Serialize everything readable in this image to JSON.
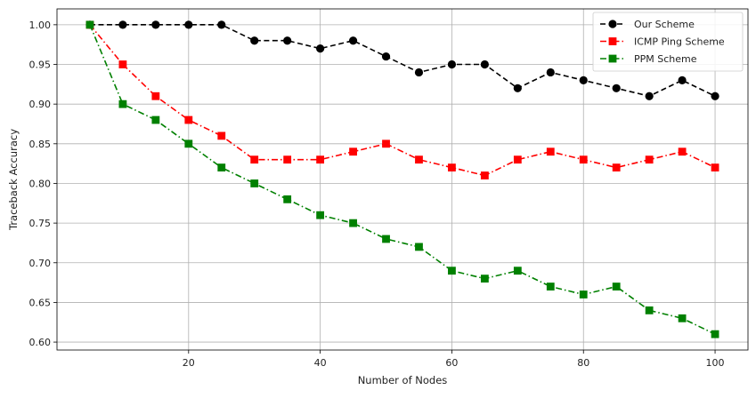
{
  "chart_data": {
    "type": "line",
    "title": "",
    "xlabel": "Number of Nodes",
    "ylabel": "Traceback Accuracy",
    "xlim": [
      0,
      105
    ],
    "ylim": [
      0.59,
      1.02
    ],
    "xticks": [
      20,
      40,
      60,
      80,
      100
    ],
    "yticks": [
      0.6,
      0.65,
      0.7,
      0.75,
      0.8,
      0.85,
      0.9,
      0.95,
      1.0
    ],
    "grid": true,
    "legend_position": "top-right",
    "x": [
      5,
      10,
      15,
      20,
      25,
      30,
      35,
      40,
      45,
      50,
      55,
      60,
      65,
      70,
      75,
      80,
      85,
      90,
      95,
      100
    ],
    "series": [
      {
        "name": "Our Scheme",
        "color": "#000000",
        "marker": "circle",
        "linestyle": "dashed",
        "values": [
          1.0,
          1.0,
          1.0,
          1.0,
          1.0,
          0.98,
          0.98,
          0.97,
          0.98,
          0.96,
          0.94,
          0.95,
          0.95,
          0.92,
          0.94,
          0.93,
          0.92,
          0.91,
          0.93,
          0.91
        ]
      },
      {
        "name": "ICMP Ping Scheme",
        "color": "#ff0000",
        "marker": "square",
        "linestyle": "dashdot",
        "values": [
          1.0,
          0.95,
          0.91,
          0.88,
          0.86,
          0.83,
          0.83,
          0.83,
          0.84,
          0.85,
          0.83,
          0.82,
          0.81,
          0.83,
          0.84,
          0.83,
          0.82,
          0.83,
          0.84,
          0.82
        ]
      },
      {
        "name": "PPM Scheme",
        "color": "#008000",
        "marker": "square",
        "linestyle": "dashdot",
        "values": [
          1.0,
          0.9,
          0.88,
          0.85,
          0.82,
          0.8,
          0.78,
          0.76,
          0.75,
          0.73,
          0.72,
          0.69,
          0.68,
          0.69,
          0.67,
          0.66,
          0.67,
          0.64,
          0.63,
          0.61
        ]
      }
    ]
  }
}
